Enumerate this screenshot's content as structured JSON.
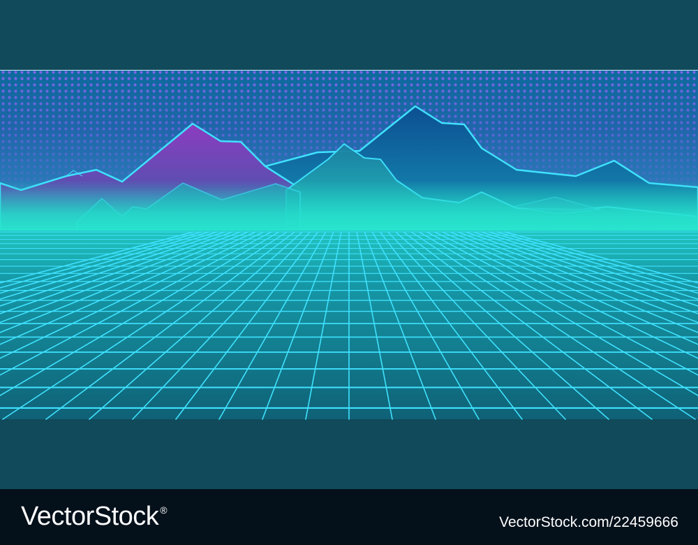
{
  "footer": {
    "brand": "VectorStock",
    "registered_mark": "®",
    "image_id": "VectorStock.com/22459666"
  },
  "palette": {
    "band": "#114a5a",
    "sky_top": "#0d6a9c",
    "sky_mid": "#2a6fb0",
    "dots": "#7a5cf0",
    "mountain_purple": "#8a3fbe",
    "mountain_blue": "#0e5a9a",
    "neon_line": "#3fe2ff",
    "horizon_glow": "#23e0c8",
    "floor_top": "#1aa0a8",
    "floor_bottom": "#0e5f74",
    "footer_bg": "#04101a"
  }
}
